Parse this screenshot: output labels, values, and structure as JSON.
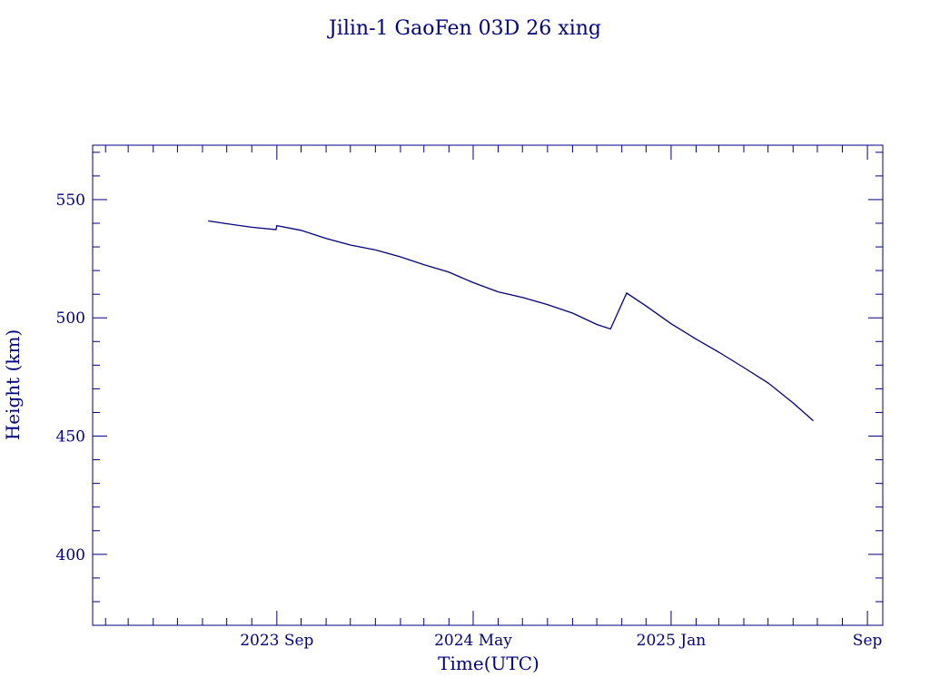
{
  "chart_data": {
    "type": "line",
    "title": "Jilin-1 GaoFen 03D 26 xing",
    "xlabel": "Time(UTC)",
    "ylabel": "Height (km)",
    "xlim": [
      "2023-01-16",
      "2025-09-20"
    ],
    "ylim": [
      370,
      573
    ],
    "x_ticks": [
      {
        "date": "2023-09-01",
        "label": "2023 Sep"
      },
      {
        "date": "2024-05-01",
        "label": "2024 May"
      },
      {
        "date": "2025-01-01",
        "label": "2025 Jan"
      },
      {
        "date": "2025-09-01",
        "label": "Sep"
      }
    ],
    "y_ticks": [
      400,
      450,
      500,
      550
    ],
    "grid": false,
    "line_color": "#000080",
    "series": [
      {
        "points": [
          [
            "2023-06-08",
            541.0
          ],
          [
            "2023-07-01",
            539.8
          ],
          [
            "2023-08-01",
            538.3
          ],
          [
            "2023-08-31",
            537.3
          ],
          [
            "2023-09-01",
            539.0
          ],
          [
            "2023-10-01",
            537.0
          ],
          [
            "2023-11-01",
            533.6
          ],
          [
            "2023-12-01",
            530.8
          ],
          [
            "2024-01-01",
            528.7
          ],
          [
            "2024-02-01",
            525.8
          ],
          [
            "2024-03-01",
            522.5
          ],
          [
            "2024-04-01",
            519.3
          ],
          [
            "2024-05-01",
            514.9
          ],
          [
            "2024-06-01",
            511.0
          ],
          [
            "2024-07-01",
            508.6
          ],
          [
            "2024-08-01",
            505.6
          ],
          [
            "2024-09-01",
            502.0
          ],
          [
            "2024-10-01",
            497.2
          ],
          [
            "2024-10-18",
            495.3
          ],
          [
            "2024-11-07",
            510.5
          ],
          [
            "2024-12-01",
            505.0
          ],
          [
            "2025-01-01",
            497.5
          ],
          [
            "2025-02-01",
            491.0
          ],
          [
            "2025-03-01",
            485.5
          ],
          [
            "2025-04-01",
            479.0
          ],
          [
            "2025-05-01",
            472.5
          ],
          [
            "2025-06-01",
            464.0
          ],
          [
            "2025-06-26",
            456.5
          ]
        ]
      }
    ]
  }
}
